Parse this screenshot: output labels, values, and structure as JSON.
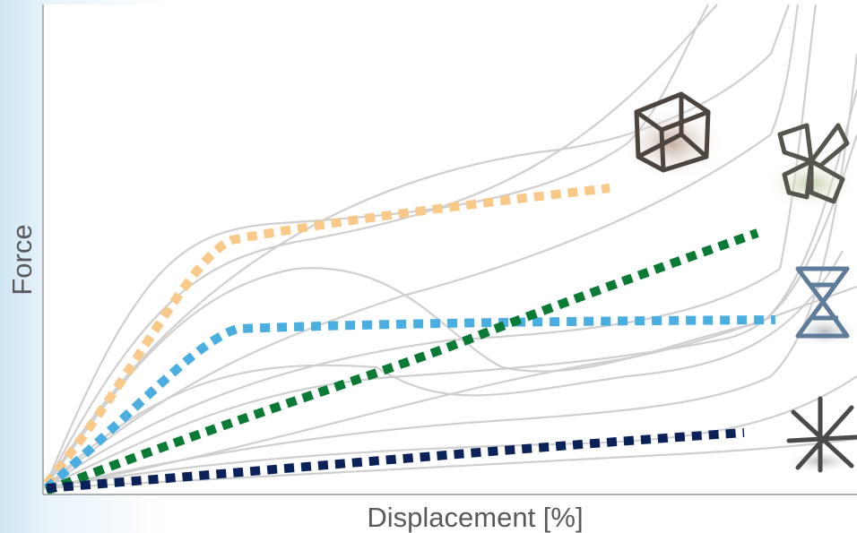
{
  "axes": {
    "x_label": "Displacement [%]",
    "y_label": "Force"
  }
}
